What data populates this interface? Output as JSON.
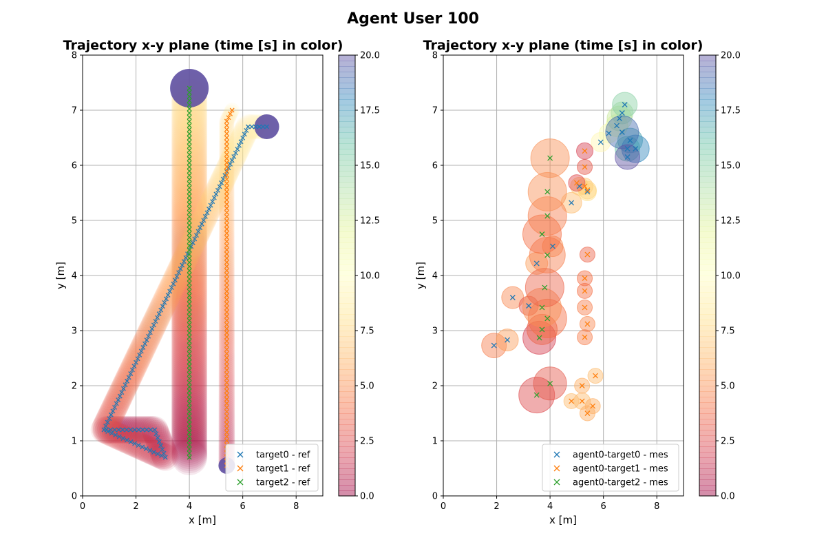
{
  "figure": {
    "title": "Agent User 100"
  },
  "colormap_stops": [
    "#9e0142",
    "#d53e4f",
    "#f46d43",
    "#fdae61",
    "#fee08b",
    "#ffffbf",
    "#e6f598",
    "#abdda4",
    "#66c2a5",
    "#3288bd",
    "#5e4fa2"
  ],
  "chart_data": [
    {
      "type": "scatter",
      "title": "Trajectory x-y plane  (time [s] in color)",
      "xlabel": "x [m]",
      "ylabel": "y [m]",
      "xlim": [
        0,
        9
      ],
      "ylim": [
        0,
        8
      ],
      "xticks": [
        "0",
        "2",
        "4",
        "6",
        "8"
      ],
      "yticks": [
        "0",
        "1",
        "2",
        "3",
        "4",
        "5",
        "6",
        "7",
        "8"
      ],
      "grid": true,
      "legend_position": "lower-right",
      "colorbar": {
        "range": [
          0,
          20
        ],
        "ticks": [
          "0.0",
          "2.5",
          "5.0",
          "7.5",
          "10.0",
          "12.5",
          "15.0",
          "17.5",
          "20.0"
        ]
      },
      "series": [
        {
          "name": "target0 - ref",
          "color": "#1f77b4",
          "x": [
            0.9,
            2.7,
            3.1,
            0.8,
            6.2,
            6.9
          ],
          "y": [
            1.2,
            1.2,
            0.7,
            1.2,
            6.7,
            6.7
          ]
        },
        {
          "name": "target1 - ref",
          "color": "#ff7f0e",
          "x": [
            5.4,
            5.4,
            5.6
          ],
          "y": [
            0.55,
            6.8,
            7.0
          ]
        },
        {
          "name": "target2 - ref",
          "color": "#2ca02c",
          "x": [
            4.0,
            4.0
          ],
          "y": [
            0.7,
            7.4
          ]
        }
      ]
    },
    {
      "type": "scatter",
      "title": "Trajectory x-y plane  (time [s] in color)",
      "xlabel": "x [m]",
      "ylabel": "y [m]",
      "xlim": [
        0,
        9
      ],
      "ylim": [
        0,
        8
      ],
      "xticks": [
        "0",
        "2",
        "4",
        "6",
        "8"
      ],
      "yticks": [
        "0",
        "1",
        "2",
        "3",
        "4",
        "5",
        "6",
        "7",
        "8"
      ],
      "grid": true,
      "legend_position": "lower-right",
      "colorbar": {
        "range": [
          0,
          20
        ],
        "ticks": [
          "0.0",
          "2.5",
          "5.0",
          "7.5",
          "10.0",
          "12.5",
          "15.0",
          "17.5",
          "20.0"
        ]
      },
      "series": [
        {
          "name": "agent0-target0 - mes",
          "color": "#1f77b4",
          "x": [
            1.9,
            2.4,
            2.6,
            3.2,
            3.5,
            4.1,
            4.8,
            5.1,
            5.4,
            5.9,
            6.2,
            6.5,
            6.6,
            6.7,
            6.8,
            6.9,
            7.0,
            7.2,
            6.7,
            6.9
          ],
          "y": [
            2.73,
            2.83,
            3.6,
            3.45,
            4.22,
            4.53,
            5.32,
            5.62,
            5.52,
            6.42,
            6.58,
            6.72,
            6.85,
            6.95,
            7.1,
            6.3,
            6.45,
            6.3,
            6.6,
            6.15
          ],
          "t": [
            4.5,
            5.5,
            4.8,
            3.0,
            5.5,
            5.0,
            6.5,
            7.0,
            8.0,
            9.5,
            10.5,
            11.5,
            13.0,
            14.0,
            15.0,
            16.0,
            17.0,
            18.0,
            19.0,
            20.0
          ]
        },
        {
          "name": "agent0-target1 - mes",
          "color": "#ff7f0e",
          "x": [
            4.8,
            5.2,
            5.4,
            5.6,
            5.7,
            5.2,
            5.4,
            5.3,
            5.3,
            5.3,
            5.3,
            5.4,
            5.3,
            5.4,
            5.0,
            5.3,
            5.3
          ],
          "y": [
            1.72,
            1.72,
            1.5,
            1.63,
            2.18,
            2.0,
            3.12,
            2.88,
            3.42,
            3.72,
            3.95,
            4.38,
            5.62,
            5.55,
            5.68,
            5.97,
            6.26
          ],
          "t": [
            6.5,
            6.5,
            6.0,
            6.0,
            6.5,
            6.0,
            4.8,
            4.5,
            4.5,
            4.0,
            4.0,
            3.5,
            7.0,
            7.5,
            2.5,
            3.0,
            2.0
          ]
        },
        {
          "name": "agent0-target2 - mes",
          "color": "#2ca02c",
          "x": [
            3.5,
            4.0,
            3.6,
            3.7,
            3.9,
            3.7,
            3.8,
            3.9,
            3.7,
            3.9,
            3.9,
            4.0
          ],
          "y": [
            1.83,
            2.04,
            2.87,
            3.02,
            3.22,
            3.42,
            3.78,
            4.37,
            4.75,
            5.08,
            5.52,
            6.13
          ],
          "t": [
            2.5,
            3.0,
            2.0,
            3.5,
            4.0,
            5.0,
            3.5,
            4.5,
            4.0,
            4.5,
            5.0,
            5.0
          ]
        }
      ]
    }
  ]
}
